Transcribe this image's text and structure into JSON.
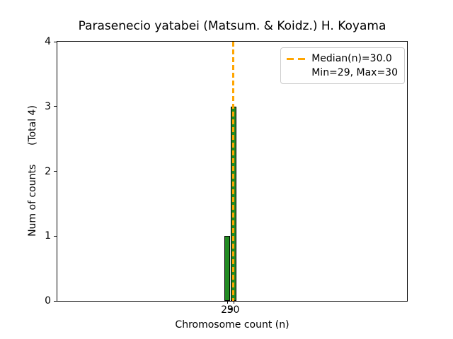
{
  "figure": {
    "title": "Parasenecio yatabei (Matsum. & Koidz.) H. Koyama",
    "xlabel": "Chromosome count (n)",
    "ylabel": "Num of counts      (Total 4)"
  },
  "legend": {
    "items": [
      {
        "marker": "orange-dashed-line",
        "label": "Median(n)=30.0"
      },
      {
        "marker": "none",
        "label": "Min=29, Max=30"
      }
    ]
  },
  "colors": {
    "bar_fill": "#228B22",
    "bar_edge": "#000000",
    "median_line": "#FFA500",
    "axis": "#000000",
    "legend_border": "#cccccc",
    "text": "#000000"
  },
  "chart_data": {
    "type": "bar",
    "title": "Parasenecio yatabei (Matsum. & Koidz.) H. Koyama",
    "xlabel": "Chromosome count (n)",
    "ylabel": "Num of counts (Total 4)",
    "categories": [
      29,
      30
    ],
    "values": [
      1,
      3
    ],
    "bar_width_units": 0.94,
    "xticks": [
      29,
      30
    ],
    "yticks": [
      0,
      1,
      2,
      3,
      4
    ],
    "ylim": [
      0,
      4
    ],
    "median": 30.0,
    "min": 29,
    "max": 30,
    "total_counts": 4,
    "grid": false,
    "legend_position": "upper right"
  }
}
